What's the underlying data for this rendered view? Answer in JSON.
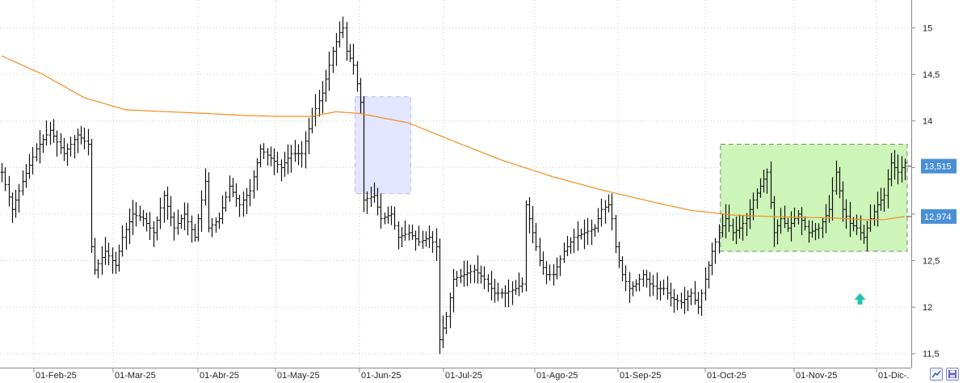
{
  "chart_data": {
    "type": "ohlc",
    "y_axis": {
      "position": "right",
      "ylim": [
        11.35,
        15.3
      ],
      "ticks": [
        "15",
        "14,5",
        "14",
        "13,5",
        "13",
        "12,5",
        "12",
        "11,5"
      ],
      "tick_values": [
        15,
        14.5,
        14,
        13.5,
        13,
        12.5,
        12,
        11.5
      ]
    },
    "x_axis": {
      "ticks": [
        "01-Feb-25",
        "01-Mar-25",
        "01-Abr-25",
        "01-May-25",
        "01-Jun-25",
        "01-Jul-25",
        "01-Ago-25",
        "01-Sep-25",
        "01-Oct-25",
        "01-Nov-25",
        "01-Dic-."
      ]
    },
    "grid": true,
    "price_anchors": [
      [
        0,
        13.45
      ],
      [
        3,
        13.05
      ],
      [
        6,
        13.35
      ],
      [
        10,
        13.7
      ],
      [
        14,
        13.9
      ],
      [
        18,
        13.65
      ],
      [
        22,
        13.85
      ],
      [
        25,
        13.75
      ],
      [
        26,
        12.65
      ],
      [
        27,
        12.4
      ],
      [
        30,
        12.6
      ],
      [
        33,
        12.45
      ],
      [
        35,
        12.75
      ],
      [
        38,
        13.0
      ],
      [
        41,
        12.95
      ],
      [
        44,
        12.8
      ],
      [
        47,
        13.2
      ],
      [
        50,
        12.85
      ],
      [
        53,
        13.0
      ],
      [
        56,
        12.75
      ],
      [
        59,
        13.35
      ],
      [
        60,
        12.85
      ],
      [
        63,
        12.95
      ],
      [
        66,
        13.3
      ],
      [
        69,
        13.1
      ],
      [
        72,
        13.25
      ],
      [
        75,
        13.7
      ],
      [
        78,
        13.6
      ],
      [
        81,
        13.5
      ],
      [
        84,
        13.65
      ],
      [
        87,
        13.65
      ],
      [
        90,
        14.05
      ],
      [
        93,
        14.3
      ],
      [
        96,
        14.75
      ],
      [
        98,
        14.95
      ],
      [
        99,
        15.0
      ],
      [
        100,
        14.75
      ],
      [
        102,
        14.6
      ],
      [
        104,
        14.2
      ],
      [
        105,
        13.15
      ],
      [
        108,
        13.2
      ],
      [
        110,
        12.95
      ],
      [
        113,
        13.0
      ],
      [
        115,
        12.75
      ],
      [
        118,
        12.8
      ],
      [
        121,
        12.7
      ],
      [
        124,
        12.75
      ],
      [
        126,
        12.65
      ],
      [
        127,
        11.65
      ],
      [
        129,
        11.9
      ],
      [
        131,
        12.3
      ],
      [
        134,
        12.35
      ],
      [
        137,
        12.4
      ],
      [
        140,
        12.3
      ],
      [
        143,
        12.15
      ],
      [
        146,
        12.15
      ],
      [
        149,
        12.2
      ],
      [
        151,
        12.25
      ],
      [
        152,
        13.1
      ],
      [
        154,
        12.8
      ],
      [
        156,
        12.5
      ],
      [
        158,
        12.35
      ],
      [
        160,
        12.35
      ],
      [
        163,
        12.6
      ],
      [
        166,
        12.75
      ],
      [
        169,
        12.8
      ],
      [
        172,
        12.85
      ],
      [
        174,
        13.05
      ],
      [
        176,
        13.1
      ],
      [
        177,
        12.95
      ],
      [
        178,
        12.65
      ],
      [
        180,
        12.35
      ],
      [
        182,
        12.2
      ],
      [
        184,
        12.25
      ],
      [
        186,
        12.35
      ],
      [
        188,
        12.25
      ],
      [
        190,
        12.2
      ],
      [
        192,
        12.2
      ],
      [
        194,
        12.1
      ],
      [
        197,
        12.05
      ],
      [
        200,
        12.15
      ],
      [
        202,
        12.0
      ],
      [
        204,
        12.3
      ],
      [
        206,
        12.6
      ],
      [
        208,
        12.8
      ],
      [
        210,
        12.95
      ],
      [
        212,
        12.8
      ],
      [
        214,
        12.85
      ],
      [
        216,
        12.95
      ],
      [
        218,
        13.15
      ],
      [
        220,
        13.3
      ],
      [
        222,
        13.45
      ],
      [
        224,
        12.8
      ],
      [
        226,
        12.95
      ],
      [
        228,
        12.85
      ],
      [
        231,
        13.0
      ],
      [
        234,
        12.8
      ],
      [
        237,
        12.85
      ],
      [
        240,
        13.05
      ],
      [
        242,
        13.45
      ],
      [
        244,
        13.05
      ],
      [
        246,
        12.9
      ],
      [
        248,
        12.85
      ],
      [
        250,
        12.75
      ],
      [
        252,
        12.95
      ],
      [
        254,
        13.1
      ],
      [
        256,
        13.2
      ],
      [
        258,
        13.55
      ],
      [
        260,
        13.45
      ],
      [
        262,
        13.55
      ]
    ],
    "moving_average": {
      "color": "#f28c1e",
      "anchors": [
        [
          0,
          14.7
        ],
        [
          12,
          14.5
        ],
        [
          24,
          14.25
        ],
        [
          36,
          14.12
        ],
        [
          48,
          14.1
        ],
        [
          60,
          14.08
        ],
        [
          70,
          14.06
        ],
        [
          80,
          14.05
        ],
        [
          90,
          14.05
        ],
        [
          97,
          14.1
        ],
        [
          104,
          14.08
        ],
        [
          118,
          13.98
        ],
        [
          130,
          13.8
        ],
        [
          145,
          13.58
        ],
        [
          160,
          13.4
        ],
        [
          175,
          13.25
        ],
        [
          190,
          13.12
        ],
        [
          200,
          13.04
        ],
        [
          212,
          12.99
        ],
        [
          225,
          12.97
        ],
        [
          240,
          12.96
        ],
        [
          250,
          12.94
        ],
        [
          256,
          12.94
        ],
        [
          262,
          12.974
        ]
      ]
    },
    "indicators": [
      {
        "label": "13,515",
        "value": 13.515,
        "color": "#4a8fd6"
      },
      {
        "label": "12,974",
        "value": 12.974,
        "color": "#4a8fd6"
      }
    ],
    "zones": [
      {
        "name": "blue-zone",
        "from_bar": 103,
        "to_bar": 118,
        "y_low": 13.22,
        "y_high": 14.26,
        "fill": "#e4e6ff",
        "stroke": "#b8bde6"
      },
      {
        "name": "green-range",
        "from_bar": 209,
        "to_bar": 262,
        "y_low": 12.6,
        "y_high": 13.75,
        "fill": "#cdf5b9",
        "stroke": "#7a8a70"
      }
    ],
    "signal_arrow": {
      "bar": 249,
      "value": 12.08,
      "color": "#22c3b0"
    }
  },
  "controls": {
    "zoom_icon": "zoom-chart-icon",
    "save_icon": "save-disk-icon"
  }
}
